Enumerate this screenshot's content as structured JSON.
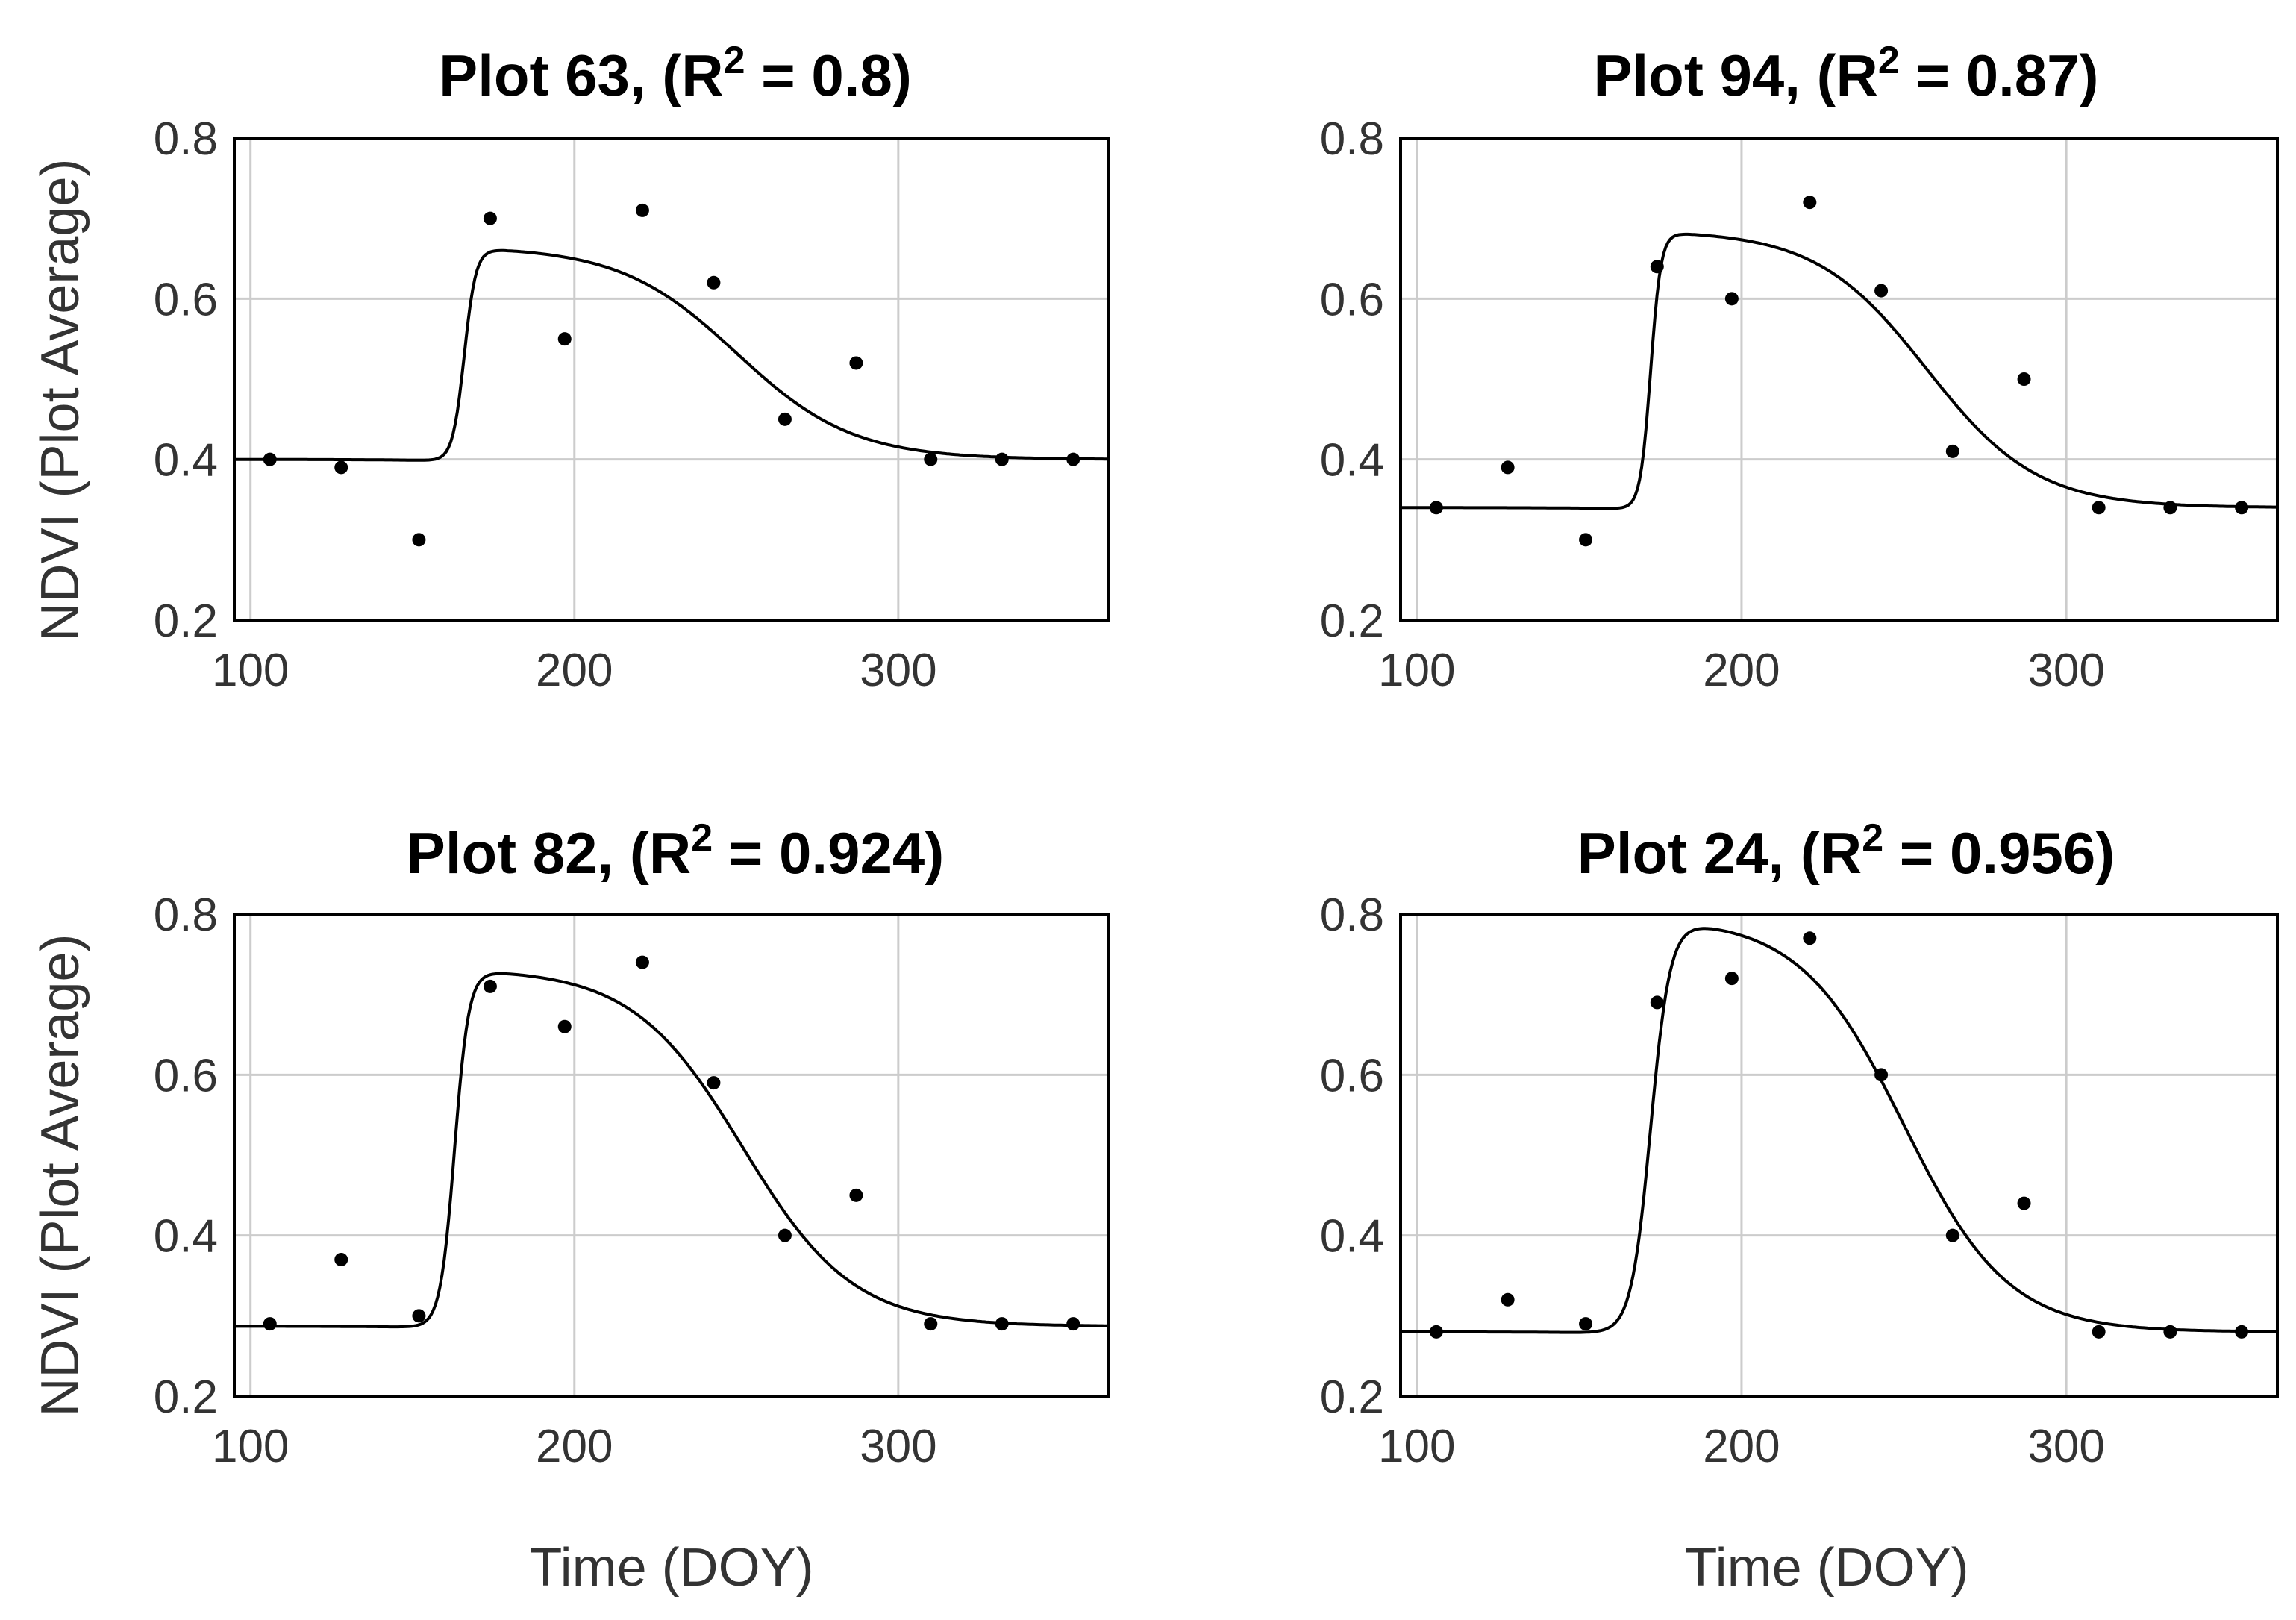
{
  "chart_data": [
    {
      "type": "scatter",
      "panel": "top-left",
      "title_prefix": "Plot 63, (R",
      "title_sup": "2",
      "title_suffix": " = 0.8)",
      "xlabel": "",
      "ylabel": "NDVI (Plot Average)",
      "xlim": [
        95,
        365
      ],
      "ylim": [
        0.2,
        0.8
      ],
      "xticks": [
        100,
        200,
        300
      ],
      "yticks": [
        0.2,
        0.4,
        0.6,
        0.8
      ],
      "xtick_labels": [
        "100",
        "200",
        "300"
      ],
      "ytick_labels": [
        "0.2",
        "0.4",
        "0.6",
        "0.8"
      ],
      "points": {
        "x": [
          106,
          128,
          152,
          174,
          197,
          221,
          243,
          265,
          287,
          310,
          332,
          354
        ],
        "y": [
          0.4,
          0.39,
          0.3,
          0.7,
          0.55,
          0.71,
          0.62,
          0.45,
          0.52,
          0.4,
          0.4,
          0.4
        ]
      },
      "fit": {
        "base": 0.4,
        "amp": 0.265,
        "onset": 166,
        "rise": 1.8,
        "sen": 250,
        "fall": 18
      }
    },
    {
      "type": "scatter",
      "panel": "top-right",
      "title_prefix": "Plot 94, (R",
      "title_sup": "2",
      "title_suffix": " = 0.87)",
      "xlabel": "",
      "ylabel": "",
      "xlim": [
        95,
        365
      ],
      "ylim": [
        0.2,
        0.8
      ],
      "xticks": [
        100,
        200,
        300
      ],
      "yticks": [
        0.2,
        0.4,
        0.6,
        0.8
      ],
      "xtick_labels": [
        "100",
        "200",
        "300"
      ],
      "ytick_labels": [
        "0.2",
        "0.4",
        "0.6",
        "0.8"
      ],
      "points": {
        "x": [
          106,
          128,
          152,
          174,
          197,
          221,
          243,
          265,
          287,
          310,
          332,
          354
        ],
        "y": [
          0.34,
          0.39,
          0.3,
          0.64,
          0.6,
          0.72,
          0.61,
          0.41,
          0.5,
          0.34,
          0.34,
          0.34
        ]
      },
      "fit": {
        "base": 0.34,
        "amp": 0.345,
        "onset": 172,
        "rise": 1.6,
        "sen": 257,
        "fall": 17
      }
    },
    {
      "type": "scatter",
      "panel": "bottom-left",
      "title_prefix": "Plot 82, (R",
      "title_sup": "2",
      "title_suffix": " = 0.924)",
      "xlabel": "Time (DOY)",
      "ylabel": "NDVI (Plot Average)",
      "xlim": [
        95,
        365
      ],
      "ylim": [
        0.2,
        0.8
      ],
      "xticks": [
        100,
        200,
        300
      ],
      "yticks": [
        0.2,
        0.4,
        0.6,
        0.8
      ],
      "xtick_labels": [
        "100",
        "200",
        "300"
      ],
      "ytick_labels": [
        "0.2",
        "0.4",
        "0.6",
        "0.8"
      ],
      "points": {
        "x": [
          106,
          128,
          152,
          174,
          197,
          221,
          243,
          265,
          287,
          310,
          332,
          354
        ],
        "y": [
          0.29,
          0.37,
          0.3,
          0.71,
          0.66,
          0.74,
          0.59,
          0.4,
          0.45,
          0.29,
          0.29,
          0.29
        ]
      },
      "fit": {
        "base": 0.287,
        "amp": 0.445,
        "onset": 163,
        "rise": 2.2,
        "sen": 252,
        "fall": 17
      }
    },
    {
      "type": "scatter",
      "panel": "bottom-right",
      "title_prefix": "Plot 24, (R",
      "title_sup": "2",
      "title_suffix": " = 0.956)",
      "xlabel": "Time (DOY)",
      "ylabel": "",
      "xlim": [
        95,
        365
      ],
      "ylim": [
        0.2,
        0.8
      ],
      "xticks": [
        100,
        200,
        300
      ],
      "yticks": [
        0.2,
        0.4,
        0.6,
        0.8
      ],
      "xtick_labels": [
        "100",
        "200",
        "300"
      ],
      "ytick_labels": [
        "0.2",
        "0.4",
        "0.6",
        "0.8"
      ],
      "points": {
        "x": [
          106,
          128,
          152,
          174,
          197,
          221,
          243,
          265,
          287,
          310,
          332,
          354
        ],
        "y": [
          0.28,
          0.32,
          0.29,
          0.69,
          0.72,
          0.77,
          0.6,
          0.4,
          0.44,
          0.28,
          0.28,
          0.28
        ]
      },
      "fit": {
        "base": 0.28,
        "amp": 0.515,
        "onset": 172,
        "rise": 3.0,
        "sen": 250,
        "fall": 16
      }
    }
  ]
}
